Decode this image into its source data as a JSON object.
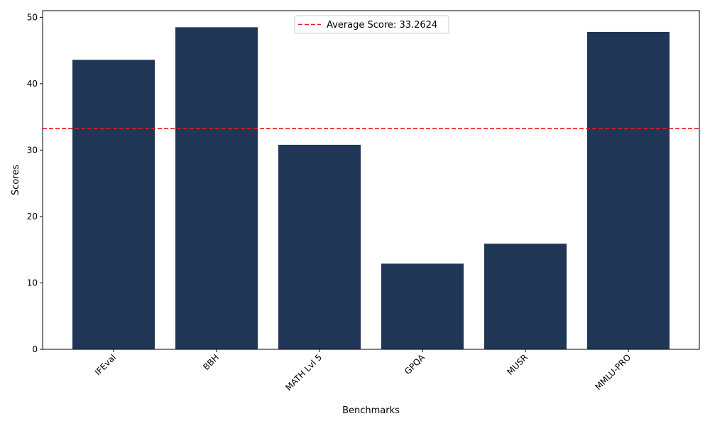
{
  "chart_data": {
    "type": "bar",
    "categories": [
      "IFEval",
      "BBH",
      "MATH Lvl 5",
      "GPQA",
      "MUSR",
      "MMLU-PRO"
    ],
    "values": [
      43.6,
      48.5,
      30.8,
      12.9,
      15.9,
      47.8
    ],
    "xlabel": "Benchmarks",
    "ylabel": "Scores",
    "ylim": [
      0,
      51
    ],
    "yticks": [
      0,
      10,
      20,
      30,
      40,
      50
    ],
    "average": {
      "value": 33.2624,
      "label": "Average Score: 33.2624"
    },
    "legend_position": "top-center",
    "grid": false,
    "x_tick_rotation": "45 degrees",
    "colors": {
      "bar": "#1f3657",
      "average_line": "#e31a1c",
      "axes": "#000000"
    }
  }
}
